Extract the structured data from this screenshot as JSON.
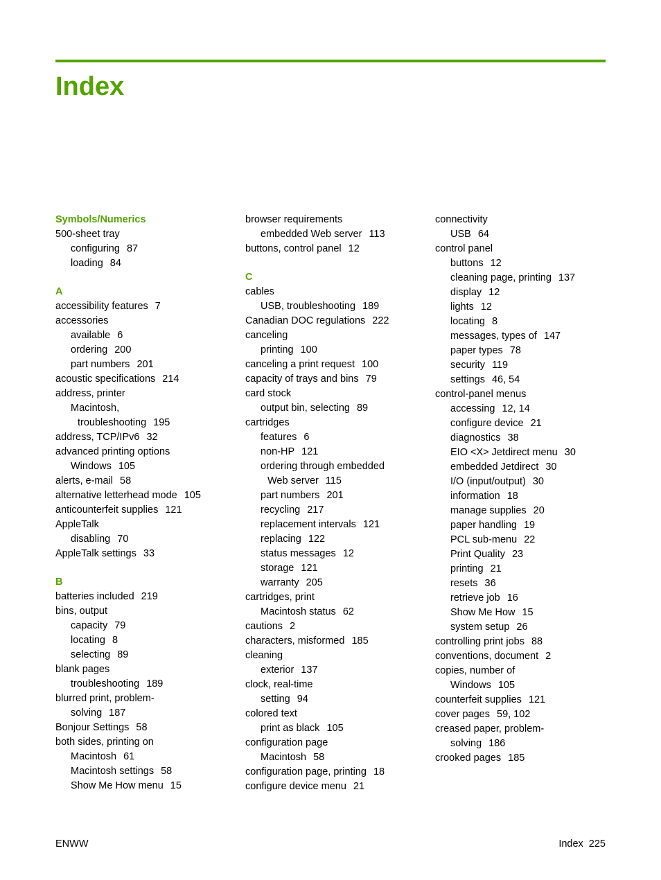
{
  "colors": {
    "accent": "#54a300",
    "text": "#000000",
    "background": "#ffffff"
  },
  "title": "Index",
  "footer": {
    "left": "ENWW",
    "right_label": "Index",
    "right_page": "225"
  },
  "columns": [
    [
      {
        "type": "heading",
        "text": "Symbols/Numerics"
      },
      {
        "type": "entry",
        "level": 0,
        "text": "500-sheet tray"
      },
      {
        "type": "entry",
        "level": 1,
        "text": "configuring",
        "pages": "87"
      },
      {
        "type": "entry",
        "level": 1,
        "text": "loading",
        "pages": "84"
      },
      {
        "type": "heading",
        "text": "A"
      },
      {
        "type": "entry",
        "level": 0,
        "text": "accessibility features",
        "pages": "7"
      },
      {
        "type": "entry",
        "level": 0,
        "text": "accessories"
      },
      {
        "type": "entry",
        "level": 1,
        "text": "available",
        "pages": "6"
      },
      {
        "type": "entry",
        "level": 1,
        "text": "ordering",
        "pages": "200"
      },
      {
        "type": "entry",
        "level": 1,
        "text": "part numbers",
        "pages": "201"
      },
      {
        "type": "entry",
        "level": 0,
        "text": "acoustic specifications",
        "pages": "214"
      },
      {
        "type": "entry",
        "level": 0,
        "text": "address, printer"
      },
      {
        "type": "entry",
        "level": 1,
        "text": "Macintosh,"
      },
      {
        "type": "entry",
        "level": 2,
        "text": "troubleshooting",
        "pages": "195"
      },
      {
        "type": "entry",
        "level": 0,
        "text": "address, TCP/IPv6",
        "pages": "32"
      },
      {
        "type": "entry",
        "level": 0,
        "text": "advanced printing options"
      },
      {
        "type": "entry",
        "level": 1,
        "text": "Windows",
        "pages": "105"
      },
      {
        "type": "entry",
        "level": 0,
        "text": "alerts, e-mail",
        "pages": "58"
      },
      {
        "type": "entry",
        "level": 0,
        "text": "alternative letterhead mode",
        "pages": "105"
      },
      {
        "type": "entry",
        "level": 0,
        "text": "anticounterfeit supplies",
        "pages": "121"
      },
      {
        "type": "entry",
        "level": 0,
        "text": "AppleTalk"
      },
      {
        "type": "entry",
        "level": 1,
        "text": "disabling",
        "pages": "70"
      },
      {
        "type": "entry",
        "level": 0,
        "text": "AppleTalk settings",
        "pages": "33"
      },
      {
        "type": "heading",
        "text": "B"
      },
      {
        "type": "entry",
        "level": 0,
        "text": "batteries included",
        "pages": "219"
      },
      {
        "type": "entry",
        "level": 0,
        "text": "bins, output"
      },
      {
        "type": "entry",
        "level": 1,
        "text": "capacity",
        "pages": "79"
      },
      {
        "type": "entry",
        "level": 1,
        "text": "locating",
        "pages": "8"
      },
      {
        "type": "entry",
        "level": 1,
        "text": "selecting",
        "pages": "89"
      },
      {
        "type": "entry",
        "level": 0,
        "text": "blank pages"
      },
      {
        "type": "entry",
        "level": 1,
        "text": "troubleshooting",
        "pages": "189"
      },
      {
        "type": "entry",
        "level": 0,
        "text": "blurred print, problem-"
      },
      {
        "type": "entry",
        "level": 1,
        "text": "solving",
        "pages": "187",
        "continuation": true
      },
      {
        "type": "entry",
        "level": 0,
        "text": "Bonjour Settings",
        "pages": "58"
      },
      {
        "type": "entry",
        "level": 0,
        "text": "both sides, printing on"
      },
      {
        "type": "entry",
        "level": 1,
        "text": "Macintosh",
        "pages": "61"
      },
      {
        "type": "entry",
        "level": 1,
        "text": "Macintosh settings",
        "pages": "58"
      },
      {
        "type": "entry",
        "level": 1,
        "text": "Show Me How menu",
        "pages": "15"
      }
    ],
    [
      {
        "type": "entry",
        "level": 0,
        "text": "browser requirements"
      },
      {
        "type": "entry",
        "level": 1,
        "text": "embedded Web server",
        "pages": "113"
      },
      {
        "type": "entry",
        "level": 0,
        "text": "buttons, control panel",
        "pages": "12"
      },
      {
        "type": "heading",
        "text": "C"
      },
      {
        "type": "entry",
        "level": 0,
        "text": "cables"
      },
      {
        "type": "entry",
        "level": 1,
        "text": "USB, troubleshooting",
        "pages": "189"
      },
      {
        "type": "entry",
        "level": 0,
        "text": "Canadian DOC regulations",
        "pages": "222"
      },
      {
        "type": "entry",
        "level": 0,
        "text": "canceling"
      },
      {
        "type": "entry",
        "level": 1,
        "text": "printing",
        "pages": "100"
      },
      {
        "type": "entry",
        "level": 0,
        "text": "canceling a print request",
        "pages": "100"
      },
      {
        "type": "entry",
        "level": 0,
        "text": "capacity of trays and bins",
        "pages": "79"
      },
      {
        "type": "entry",
        "level": 0,
        "text": "card stock"
      },
      {
        "type": "entry",
        "level": 1,
        "text": "output bin, selecting",
        "pages": "89"
      },
      {
        "type": "entry",
        "level": 0,
        "text": "cartridges"
      },
      {
        "type": "entry",
        "level": 1,
        "text": "features",
        "pages": "6"
      },
      {
        "type": "entry",
        "level": 1,
        "text": "non-HP",
        "pages": "121"
      },
      {
        "type": "entry",
        "level": 1,
        "text": "ordering through embedded"
      },
      {
        "type": "entry",
        "level": 2,
        "text": "Web server",
        "pages": "115",
        "continuation": true
      },
      {
        "type": "entry",
        "level": 1,
        "text": "part numbers",
        "pages": "201"
      },
      {
        "type": "entry",
        "level": 1,
        "text": "recycling",
        "pages": "217"
      },
      {
        "type": "entry",
        "level": 1,
        "text": "replacement intervals",
        "pages": "121"
      },
      {
        "type": "entry",
        "level": 1,
        "text": "replacing",
        "pages": "122"
      },
      {
        "type": "entry",
        "level": 1,
        "text": "status messages",
        "pages": "12"
      },
      {
        "type": "entry",
        "level": 1,
        "text": "storage",
        "pages": "121"
      },
      {
        "type": "entry",
        "level": 1,
        "text": "warranty",
        "pages": "205"
      },
      {
        "type": "entry",
        "level": 0,
        "text": "cartridges, print"
      },
      {
        "type": "entry",
        "level": 1,
        "text": "Macintosh status",
        "pages": "62"
      },
      {
        "type": "entry",
        "level": 0,
        "text": "cautions",
        "pages": "2"
      },
      {
        "type": "entry",
        "level": 0,
        "text": "characters, misformed",
        "pages": "185"
      },
      {
        "type": "entry",
        "level": 0,
        "text": "cleaning"
      },
      {
        "type": "entry",
        "level": 1,
        "text": "exterior",
        "pages": "137"
      },
      {
        "type": "entry",
        "level": 0,
        "text": "clock, real-time"
      },
      {
        "type": "entry",
        "level": 1,
        "text": "setting",
        "pages": "94"
      },
      {
        "type": "entry",
        "level": 0,
        "text": "colored text"
      },
      {
        "type": "entry",
        "level": 1,
        "text": "print as black",
        "pages": "105"
      },
      {
        "type": "entry",
        "level": 0,
        "text": "configuration page"
      },
      {
        "type": "entry",
        "level": 1,
        "text": "Macintosh",
        "pages": "58"
      },
      {
        "type": "entry",
        "level": 0,
        "text": "configuration page, printing",
        "pages": "18"
      },
      {
        "type": "entry",
        "level": 0,
        "text": "configure device menu",
        "pages": "21"
      }
    ],
    [
      {
        "type": "entry",
        "level": 0,
        "text": "connectivity"
      },
      {
        "type": "entry",
        "level": 1,
        "text": "USB",
        "pages": "64"
      },
      {
        "type": "entry",
        "level": 0,
        "text": "control panel"
      },
      {
        "type": "entry",
        "level": 1,
        "text": "buttons",
        "pages": "12"
      },
      {
        "type": "entry",
        "level": 1,
        "text": "cleaning page, printing",
        "pages": "137"
      },
      {
        "type": "entry",
        "level": 1,
        "text": "display",
        "pages": "12"
      },
      {
        "type": "entry",
        "level": 1,
        "text": "lights",
        "pages": "12"
      },
      {
        "type": "entry",
        "level": 1,
        "text": "locating",
        "pages": "8"
      },
      {
        "type": "entry",
        "level": 1,
        "text": "messages, types of",
        "pages": "147"
      },
      {
        "type": "entry",
        "level": 1,
        "text": "paper types",
        "pages": "78"
      },
      {
        "type": "entry",
        "level": 1,
        "text": "security",
        "pages": "119"
      },
      {
        "type": "entry",
        "level": 1,
        "text": "settings",
        "pages": "46,  54"
      },
      {
        "type": "entry",
        "level": 0,
        "text": "control-panel menus"
      },
      {
        "type": "entry",
        "level": 1,
        "text": "accessing",
        "pages": "12,  14"
      },
      {
        "type": "entry",
        "level": 1,
        "text": "configure device",
        "pages": "21"
      },
      {
        "type": "entry",
        "level": 1,
        "text": "diagnostics",
        "pages": "38"
      },
      {
        "type": "entry",
        "level": 1,
        "text": "EIO <X> Jetdirect menu",
        "pages": "30"
      },
      {
        "type": "entry",
        "level": 1,
        "text": "embedded Jetdirect",
        "pages": "30"
      },
      {
        "type": "entry",
        "level": 1,
        "text": "I/O (input/output)",
        "pages": "30"
      },
      {
        "type": "entry",
        "level": 1,
        "text": "information",
        "pages": "18"
      },
      {
        "type": "entry",
        "level": 1,
        "text": "manage supplies",
        "pages": "20"
      },
      {
        "type": "entry",
        "level": 1,
        "text": "paper handling",
        "pages": "19"
      },
      {
        "type": "entry",
        "level": 1,
        "text": "PCL sub-menu",
        "pages": "22"
      },
      {
        "type": "entry",
        "level": 1,
        "text": "Print Quality",
        "pages": "23"
      },
      {
        "type": "entry",
        "level": 1,
        "text": "printing",
        "pages": "21"
      },
      {
        "type": "entry",
        "level": 1,
        "text": "resets",
        "pages": "36"
      },
      {
        "type": "entry",
        "level": 1,
        "text": "retrieve job",
        "pages": "16"
      },
      {
        "type": "entry",
        "level": 1,
        "text": "Show Me How",
        "pages": "15"
      },
      {
        "type": "entry",
        "level": 1,
        "text": "system setup",
        "pages": "26"
      },
      {
        "type": "entry",
        "level": 0,
        "text": "controlling print jobs",
        "pages": "88"
      },
      {
        "type": "entry",
        "level": 0,
        "text": "conventions, document",
        "pages": "2"
      },
      {
        "type": "entry",
        "level": 0,
        "text": "copies, number of"
      },
      {
        "type": "entry",
        "level": 1,
        "text": "Windows",
        "pages": "105"
      },
      {
        "type": "entry",
        "level": 0,
        "text": "counterfeit supplies",
        "pages": "121"
      },
      {
        "type": "entry",
        "level": 0,
        "text": "cover pages",
        "pages": "59,  102"
      },
      {
        "type": "entry",
        "level": 0,
        "text": "creased paper, problem-"
      },
      {
        "type": "entry",
        "level": 1,
        "text": "solving",
        "pages": "186",
        "continuation": true
      },
      {
        "type": "entry",
        "level": 0,
        "text": "crooked pages",
        "pages": "185"
      }
    ]
  ]
}
